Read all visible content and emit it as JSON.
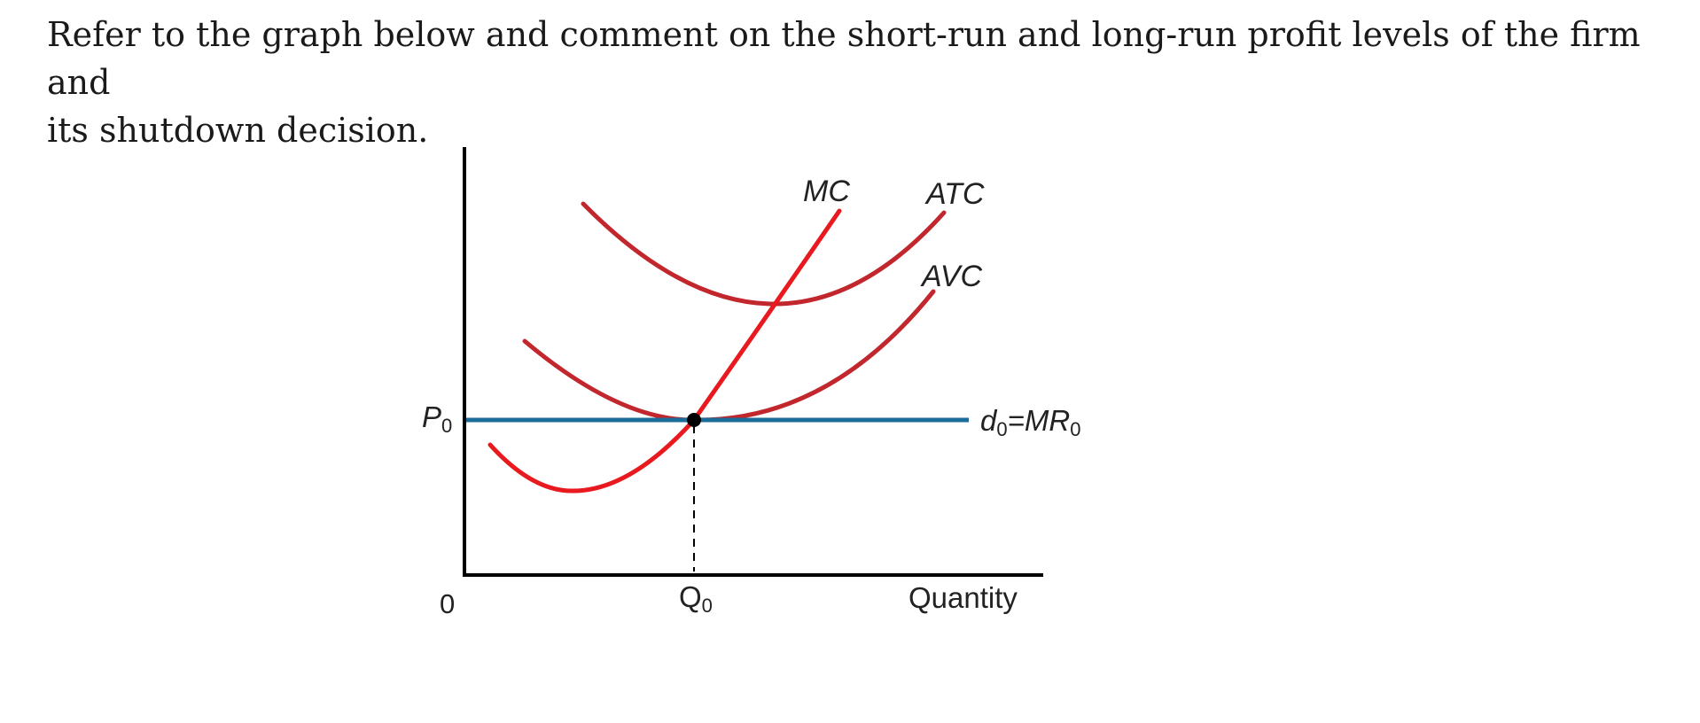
{
  "question": {
    "line1": "Refer to the graph below and comment on the short-run and long-run profit levels of the firm and",
    "line2": "its shutdown decision."
  },
  "diagram": {
    "origin_label": "0",
    "x_axis_label": "Quantity",
    "price_label": {
      "main": "P",
      "sub": "0"
    },
    "quantity_label": {
      "main": "Q",
      "sub": "0"
    },
    "demand_label": {
      "d": "d",
      "d_sub": "0",
      "eq": "=MR",
      "mr_sub": "0"
    },
    "mc_label": "MC",
    "atc_label": "ATC",
    "avc_label": "AVC",
    "colors": {
      "mc": "#e8191f",
      "atc": "#c1272d",
      "avc": "#c1272d",
      "demand": "#1d6c99",
      "axis": "#000000",
      "point": "#000000"
    }
  }
}
